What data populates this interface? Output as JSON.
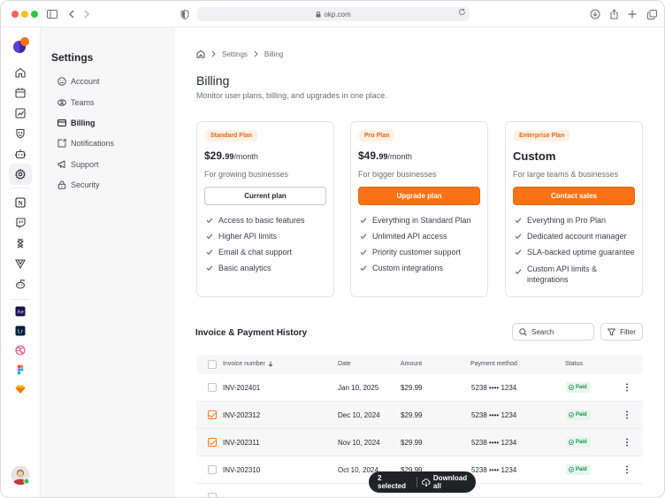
{
  "browser": {
    "url": "okp.com"
  },
  "sidebar": {
    "title": "Settings",
    "items": [
      {
        "label": "Account",
        "icon": "smile-icon"
      },
      {
        "label": "Teams",
        "icon": "teams-icon"
      },
      {
        "label": "Billing",
        "icon": "billing-icon",
        "active": true
      },
      {
        "label": "Notifications",
        "icon": "notifications-icon"
      },
      {
        "label": "Support",
        "icon": "megaphone-icon"
      },
      {
        "label": "Security",
        "icon": "lock-icon"
      }
    ]
  },
  "rail": {
    "icons": [
      "home-icon",
      "calendar-icon",
      "chart-icon",
      "shield-icon",
      "bot-icon",
      "gear-icon",
      "notion-icon",
      "twitch-icon",
      "stack-icon",
      "vector-icon",
      "reddit-icon",
      "after-effects-icon",
      "lightroom-icon",
      "dribbble-icon",
      "figma-icon",
      "sketch-icon"
    ],
    "ae_label": "Ae",
    "lr_label": "Lr",
    "notion_label": "N"
  },
  "breadcrumb": {
    "items": [
      "Settings",
      "Billing"
    ]
  },
  "page": {
    "title": "Billing",
    "subtitle": "Monitor user plans, billing, and upgrades in one place."
  },
  "plans": [
    {
      "tag": "Standard Plan",
      "price_main": "$29.",
      "price_cents": "99",
      "price_period": "/month",
      "description": "For growing businesses",
      "cta": "Current plan",
      "features": [
        "Access to basic features",
        "Higher API limits",
        "Email & chat support",
        "Basic analytics"
      ]
    },
    {
      "tag": "Pro Plan",
      "price_main": "$49.",
      "price_cents": "99",
      "price_period": "/month",
      "description": "For bigger businesses",
      "cta": "Upgrade plan",
      "features": [
        "Everything in Standard Plan",
        "Unlimited API access",
        "Priority customer support",
        "Custom integrations"
      ]
    },
    {
      "tag": "Enterprise Plan",
      "price_main": "Custom",
      "description": "For large teams & businesses",
      "cta": "Contact sales",
      "features": [
        "Everything in Pro Plan",
        "Dedicated account manager",
        "SLA-backed uptime guarantee",
        "Custom API limits & integrations"
      ]
    }
  ],
  "history": {
    "title": "Invoice & Payment History",
    "search_placeholder": "Search",
    "filter_label": "Filter",
    "columns": [
      "Invoice number",
      "Date",
      "Amount",
      "Payment method",
      "Status"
    ],
    "rows": [
      {
        "invoice": "INV-202401",
        "date": "Jan 10, 2025",
        "amount": "$29.99",
        "method": "5238 •••• 1234",
        "status": "Paid",
        "selected": false
      },
      {
        "invoice": "INV-202312",
        "date": "Dec 10, 2024",
        "amount": "$29.99",
        "method": "5238 •••• 1234",
        "status": "Paid",
        "selected": true
      },
      {
        "invoice": "INV-202311",
        "date": "Nov 10, 2024",
        "amount": "$29.99",
        "method": "5238 •••• 1234",
        "status": "Paid",
        "selected": true
      },
      {
        "invoice": "INV-202310",
        "date": "Oct 10, 2024",
        "amount": "$29.99",
        "method": "5238 •••• 1234",
        "status": "Paid",
        "selected": false
      }
    ]
  },
  "toast": {
    "count_label": "2 selected",
    "action_label": "Download all"
  },
  "colors": {
    "accent": "#f97316",
    "paid": "#1a8d4e"
  }
}
